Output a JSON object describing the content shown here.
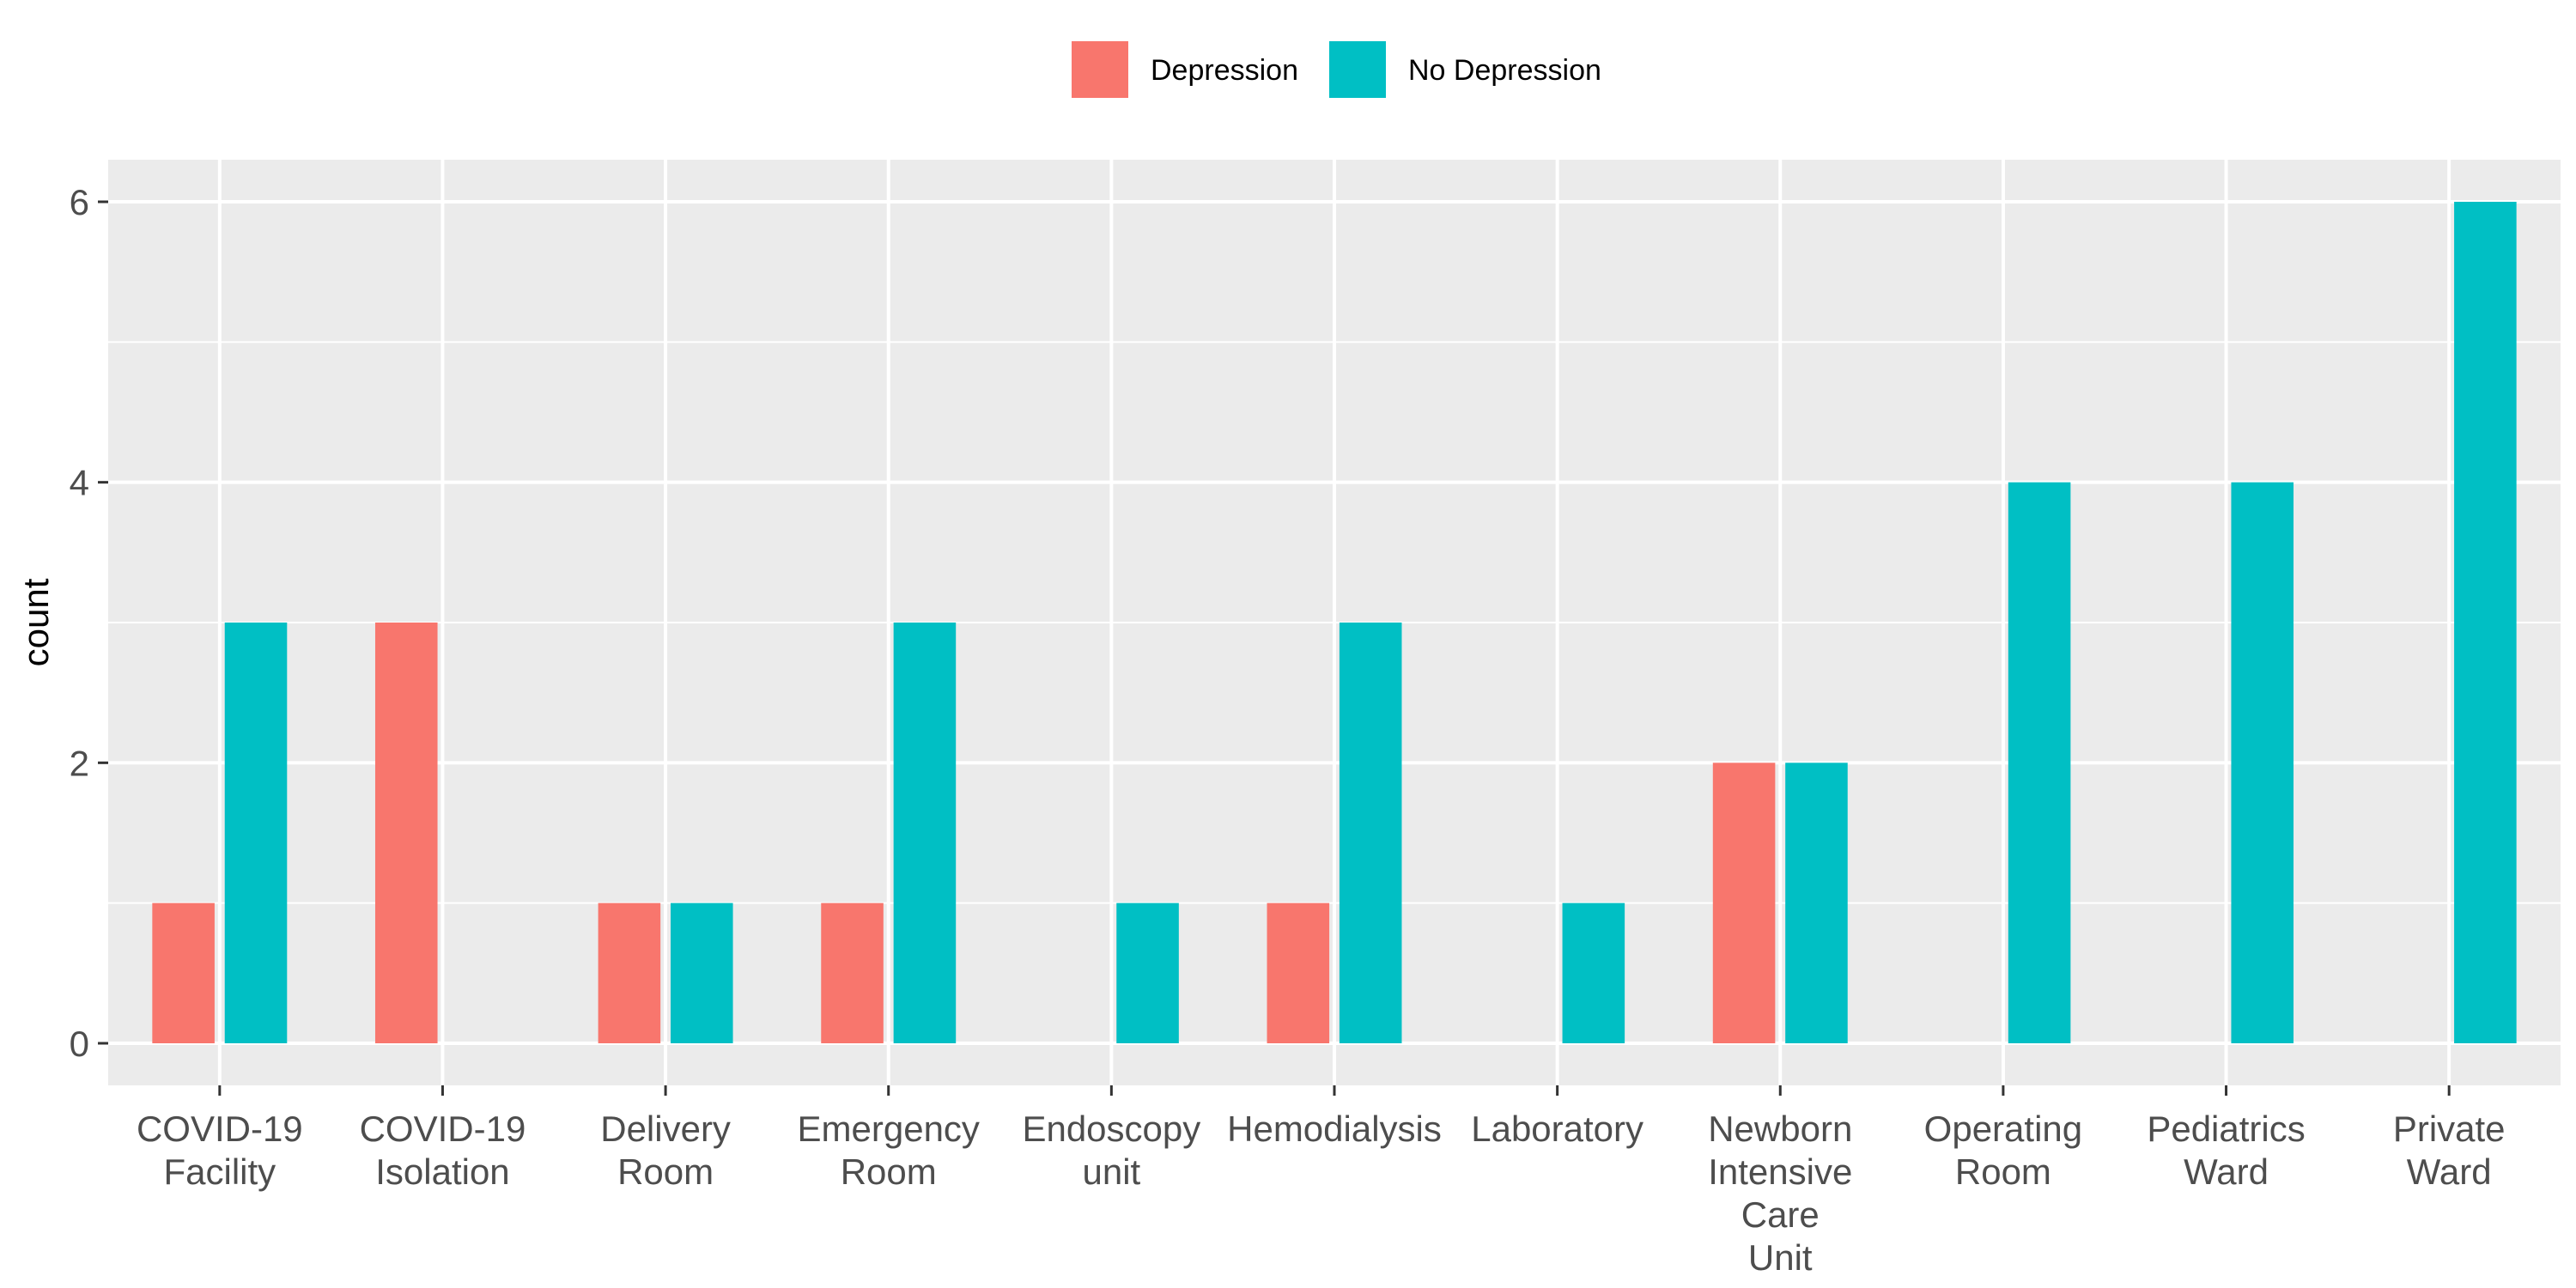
{
  "chart_data": {
    "type": "bar",
    "categories": [
      [
        "COVID-19",
        "Facility"
      ],
      [
        "COVID-19",
        "Isolation"
      ],
      [
        "Delivery",
        "Room"
      ],
      [
        "Emergency",
        "Room"
      ],
      [
        "Endoscopy",
        "unit"
      ],
      [
        "Hemodialysis"
      ],
      [
        "Laboratory"
      ],
      [
        "Newborn",
        "Intensive",
        "Care",
        "Unit"
      ],
      [
        "Operating",
        "Room"
      ],
      [
        "Pediatrics",
        "Ward"
      ],
      [
        "Private",
        "Ward"
      ]
    ],
    "series": [
      {
        "name": "Depression",
        "color": "#F8766D",
        "values": [
          1,
          3,
          1,
          1,
          0,
          1,
          0,
          2,
          0,
          0,
          0
        ]
      },
      {
        "name": "No Depression",
        "color": "#00BFC4",
        "values": [
          3,
          0,
          1,
          3,
          1,
          3,
          1,
          2,
          4,
          4,
          6
        ]
      }
    ],
    "ylabel": "count",
    "xlabel": "",
    "ylim": [
      -0.3,
      6.3
    ],
    "yticks": [
      0,
      2,
      4,
      6
    ],
    "grid": true,
    "panel_background": "#EBEBEB",
    "legend_position": "top"
  }
}
